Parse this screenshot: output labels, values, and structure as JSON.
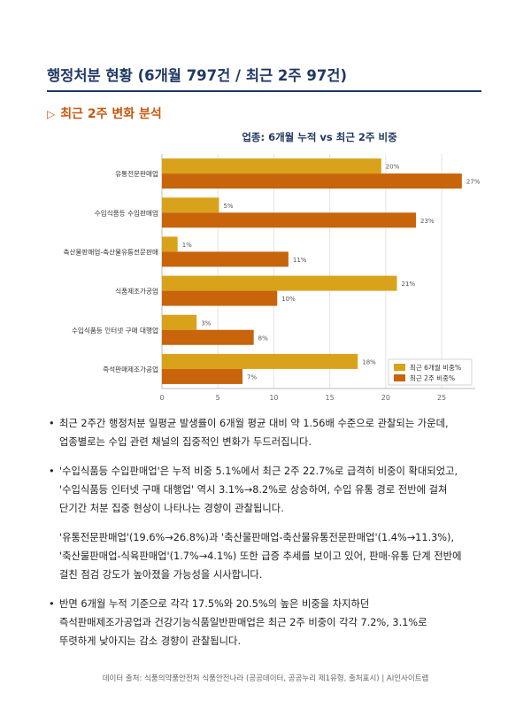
{
  "header": {
    "title": "행정처분 현황  (6개월 797건 / 최근 2주 97건)",
    "section_title": "최근 2주 변화 분석",
    "section_marker": "▷"
  },
  "chart_data": {
    "type": "bar",
    "orientation": "horizontal",
    "title": "업종: 6개월 누적 vs 최근 2주 비중",
    "categories": [
      "유통전문판매업",
      "수입식품등 수입판매업",
      "축산물판매업-축산물유통전문판매",
      "식품제조가공업",
      "수입식품등 인터넷 구매 대행업",
      "즉석판매제조가공업"
    ],
    "series": [
      {
        "name": "최근 6개월 비중%",
        "values": [
          19.6,
          5.1,
          1.4,
          21.0,
          3.1,
          17.5
        ],
        "labels": [
          "20%",
          "5%",
          "1%",
          "21%",
          "3%",
          "18%"
        ],
        "color": "#d9a21b"
      },
      {
        "name": "최근 2주 비중%",
        "values": [
          26.8,
          22.7,
          11.3,
          10.3,
          8.2,
          7.2
        ],
        "labels": [
          "27%",
          "23%",
          "11%",
          "10%",
          "8%",
          "7%"
        ],
        "color": "#c8640a"
      }
    ],
    "x_ticks": [
      "0",
      "5",
      "10",
      "15",
      "20",
      "25"
    ],
    "xlim": [
      0,
      28
    ],
    "grid": true,
    "legend_position": "bottom-right"
  },
  "bullets": {
    "b1": {
      "dot": "•",
      "line1": "최근 2주간 행정처분 일평균 발생률이 6개월 평균 대비 약 1.56배 수준으로 관찰되는 가운데,",
      "line2": "업종별로는 수입 관련 채널의 집중적인 변화가 두드러집니다."
    },
    "b2": {
      "dot": "•",
      "line1": "'수입식품등 수입판매업'은 누적 비중 5.1%에서 최근 2주 22.7%로 급격히 비중이 확대되었고,",
      "line2": "'수입식품등 인터넷 구매 대행업' 역시 3.1%→8.2%로 상승하여, 수입 유통 경로 전반에 걸쳐",
      "line3": "단기간 처분 집중 현상이 나타나는 경향이 관찰됩니다."
    },
    "p3": {
      "line1": "'유통전문판매업'(19.6%→26.8%)과 '축산물판매업-축산물유통전문판매업'(1.4%→11.3%),",
      "line2": "'축산물판매업-식육판매업'(1.7%→4.1%) 또한 급증 추세를 보이고 있어, 판매·유통 단계 전반에",
      "line3": "걸친 점검 강도가 높아졌을 가능성을 시사합니다."
    },
    "b4": {
      "dot": "•",
      "line1": "반면 6개월 누적 기준으로 각각 17.5%와 20.5%의 높은 비중을 차지하던",
      "line2": "즉석판매제조가공업과 건강기능식품일반판매업은 최근 2주 비중이 각각 7.2%, 3.1%로",
      "line3": "뚜렷하게 낮아지는 감소 경향이 관찰됩니다."
    }
  },
  "footer": {
    "text": "데이터 출처: 식품의약품안전처 식품안전나라 (공공데이터, 공공누리 제1유형, 출처표시)  |  AI인사이트랩"
  }
}
